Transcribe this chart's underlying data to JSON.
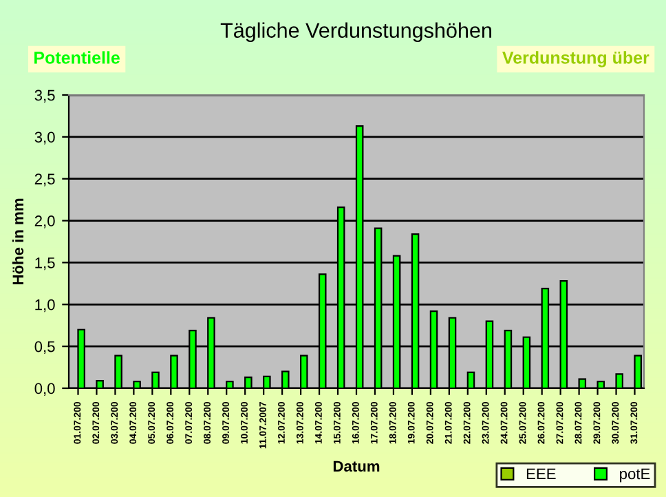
{
  "chart_data": {
    "type": "bar",
    "title": "Tägliche Verdunstungshöhen",
    "xlabel": "Datum",
    "ylabel": "Höhe in mm",
    "annotations": [
      "Potentielle",
      "Verdunstung über"
    ],
    "categories": [
      "01.07.200",
      "02.07.200",
      "03.07.200",
      "04.07.200",
      "05.07.200",
      "06.07.200",
      "07.07.200",
      "08.07.200",
      "09.07.200",
      "10.07.200",
      "11.07.2007",
      "12.07.200",
      "13.07.200",
      "14.07.200",
      "15.07.200",
      "16.07.200",
      "17.07.200",
      "18.07.200",
      "19.07.200",
      "20.07.200",
      "21.07.200",
      "22.07.200",
      "23.07.200",
      "24.07.200",
      "25.07.200",
      "26.07.200",
      "27.07.200",
      "28.07.200",
      "29.07.200",
      "30.07.200",
      "31.07.200"
    ],
    "series": [
      {
        "name": "EEE",
        "color": "#99cc00",
        "values": [
          null,
          null,
          null,
          null,
          null,
          null,
          null,
          null,
          null,
          null,
          null,
          null,
          null,
          null,
          null,
          null,
          null,
          null,
          null,
          null,
          null,
          null,
          null,
          null,
          null,
          null,
          null,
          null,
          null,
          null,
          null
        ]
      },
      {
        "name": "potE",
        "color": "#00ff00",
        "values": [
          0.7,
          0.09,
          0.39,
          0.08,
          0.19,
          0.39,
          0.69,
          0.84,
          0.08,
          0.13,
          0.14,
          0.2,
          0.39,
          1.36,
          2.16,
          3.13,
          1.91,
          1.58,
          1.84,
          0.92,
          0.84,
          0.19,
          0.8,
          0.69,
          0.61,
          1.19,
          1.28,
          0.11,
          0.08,
          0.17,
          0.39
        ]
      }
    ],
    "ylim": [
      0,
      3.5
    ],
    "yticks": [
      {
        "value": 0,
        "label": "0,0"
      },
      {
        "value": 0.5,
        "label": "0,5"
      },
      {
        "value": 1,
        "label": "1,0"
      },
      {
        "value": 1.5,
        "label": "1,5"
      },
      {
        "value": 2,
        "label": "2,0"
      },
      {
        "value": 2.5,
        "label": "2,5"
      },
      {
        "value": 3,
        "label": "3,0"
      },
      {
        "value": 3.5,
        "label": "3,5"
      }
    ],
    "grid": "y",
    "legend": "bottom right"
  }
}
